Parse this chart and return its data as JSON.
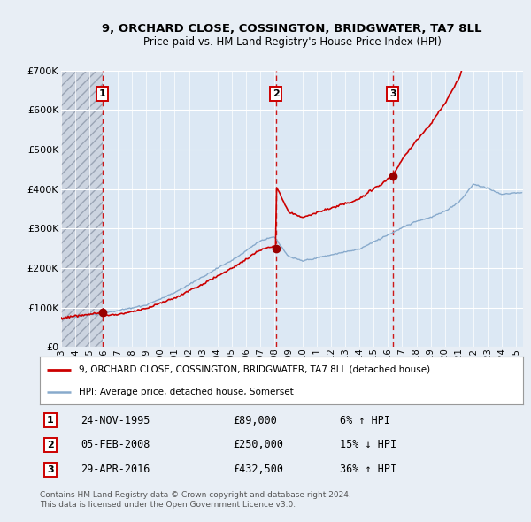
{
  "title": "9, ORCHARD CLOSE, COSSINGTON, BRIDGWATER, TA7 8LL",
  "subtitle": "Price paid vs. HM Land Registry's House Price Index (HPI)",
  "legend_line1": "9, ORCHARD CLOSE, COSSINGTON, BRIDGWATER, TA7 8LL (detached house)",
  "legend_line2": "HPI: Average price, detached house, Somerset",
  "footer_line1": "Contains HM Land Registry data © Crown copyright and database right 2024.",
  "footer_line2": "This data is licensed under the Open Government Licence v3.0.",
  "sales": [
    {
      "num": 1,
      "date": "24-NOV-1995",
      "year": 1995.9,
      "price": 89000,
      "pct": "6%",
      "dir": "↑"
    },
    {
      "num": 2,
      "date": "05-FEB-2008",
      "year": 2008.1,
      "price": 250000,
      "pct": "15%",
      "dir": "↓"
    },
    {
      "num": 3,
      "date": "29-APR-2016",
      "year": 2016.33,
      "price": 432500,
      "pct": "36%",
      "dir": "↑"
    }
  ],
  "ylim": [
    0,
    700000
  ],
  "xlim_start": 1993.0,
  "xlim_end": 2025.5,
  "hatch_end_year": 1995.9,
  "red_line_color": "#cc0000",
  "blue_line_color": "#88aacc",
  "bg_color": "#e8eef5",
  "plot_bg": "#dce8f4",
  "grid_color": "#ffffff",
  "vline_color": "#cc0000",
  "sale_marker_color": "#990000"
}
